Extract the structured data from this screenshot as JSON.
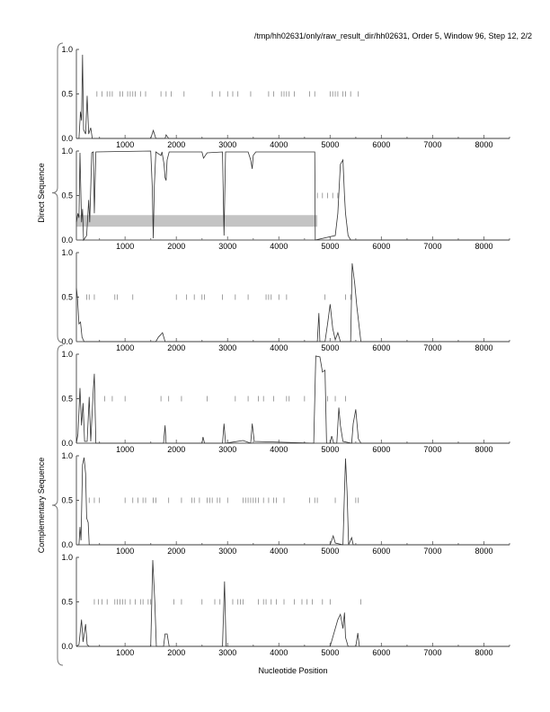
{
  "title": "/tmp/hh02631/only/raw_result_dir/hh02631, Order 5, Window 96, Step 12, 2/2",
  "chart_data": {
    "type": "line",
    "xlabel": "Nucleotide Position",
    "group_labels": [
      "Direct Sequence",
      "Complementary Sequence"
    ],
    "xlim": [
      50,
      8500
    ],
    "ylim": [
      0,
      1
    ],
    "x_ticks": [
      1000,
      2000,
      3000,
      4000,
      5000,
      6000,
      7000,
      8000
    ],
    "y_ticks": [
      "0.0",
      "0.5",
      "1.0"
    ],
    "line_color": "#333333",
    "shade_color": "#c4c4c4",
    "panels": [
      {
        "group": "Direct Sequence",
        "frame": 1,
        "curve": [
          [
            50,
            0
          ],
          [
            100,
            0
          ],
          [
            130,
            0.3
          ],
          [
            150,
            0.2
          ],
          [
            170,
            0.94
          ],
          [
            190,
            0.1
          ],
          [
            230,
            0.05
          ],
          [
            260,
            0.48
          ],
          [
            290,
            0.05
          ],
          [
            330,
            0.12
          ],
          [
            360,
            0
          ],
          [
            1500,
            0
          ],
          [
            1550,
            0.09
          ],
          [
            1600,
            0
          ],
          [
            1780,
            0
          ],
          [
            1800,
            0.04
          ],
          [
            1850,
            0
          ],
          [
            8500,
            0
          ]
        ],
        "starts": [
          450,
          550,
          650,
          700,
          750,
          900,
          950,
          1050,
          1100,
          1150,
          1200,
          1300,
          1400,
          1700,
          1800,
          1900,
          2150,
          2700,
          2850,
          3000,
          3100,
          3200,
          3450,
          3800,
          3900,
          4050,
          4100,
          4150,
          4200,
          4300,
          4600,
          4700,
          5000,
          5050,
          5100,
          5150,
          5250,
          5300,
          5400,
          5550
        ]
      },
      {
        "group": "Direct Sequence",
        "frame": 2,
        "curve": [
          [
            50,
            0.2
          ],
          [
            80,
            0.3
          ],
          [
            100,
            0.25
          ],
          [
            120,
            0.98
          ],
          [
            150,
            0.2
          ],
          [
            170,
            0.35
          ],
          [
            190,
            0
          ],
          [
            250,
            0.05
          ],
          [
            290,
            0.45
          ],
          [
            310,
            0.2
          ],
          [
            350,
            0.98
          ],
          [
            380,
            0.99
          ],
          [
            400,
            0.3
          ],
          [
            430,
            0.99
          ],
          [
            1500,
            1
          ],
          [
            1530,
            0.6
          ],
          [
            1550,
            0.02
          ],
          [
            1570,
            0.6
          ],
          [
            1600,
            0.99
          ],
          [
            1700,
            0.95
          ],
          [
            1720,
            0.99
          ],
          [
            1760,
            0.85
          ],
          [
            1780,
            0.7
          ],
          [
            1800,
            0.67
          ],
          [
            1820,
            0.9
          ],
          [
            1860,
            0.99
          ],
          [
            2500,
            0.99
          ],
          [
            2530,
            0.92
          ],
          [
            2600,
            0.98
          ],
          [
            2900,
            0.99
          ],
          [
            2930,
            0.05
          ],
          [
            2960,
            0.99
          ],
          [
            3400,
            0.99
          ],
          [
            3450,
            0.9
          ],
          [
            3480,
            0.8
          ],
          [
            3500,
            0.95
          ],
          [
            3550,
            0.99
          ],
          [
            4700,
            0.99
          ],
          [
            4710,
            0
          ],
          [
            5100,
            0.05
          ],
          [
            5150,
            0.3
          ],
          [
            5200,
            0.85
          ],
          [
            5250,
            0.9
          ],
          [
            5280,
            0.5
          ],
          [
            5300,
            0.3
          ],
          [
            5350,
            0.05
          ],
          [
            5400,
            0
          ],
          [
            8500,
            0
          ]
        ],
        "starts": [
          4750,
          4850,
          4950,
          5050,
          5150
        ],
        "shade": {
          "x": [
            50,
            4750
          ],
          "y": [
            0.15,
            0.28
          ]
        }
      },
      {
        "group": "Direct Sequence",
        "frame": 3,
        "curve": [
          [
            50,
            0.6
          ],
          [
            70,
            0.5
          ],
          [
            100,
            0.2
          ],
          [
            130,
            0.22
          ],
          [
            160,
            0.05
          ],
          [
            200,
            0
          ],
          [
            1600,
            0
          ],
          [
            1650,
            0.05
          ],
          [
            1700,
            0.08
          ],
          [
            1730,
            0.1
          ],
          [
            1780,
            0
          ],
          [
            4750,
            0
          ],
          [
            4780,
            0.32
          ],
          [
            4800,
            0
          ],
          [
            4900,
            0
          ],
          [
            4950,
            0.2
          ],
          [
            5000,
            0.42
          ],
          [
            5050,
            0.15
          ],
          [
            5100,
            0.02
          ],
          [
            5150,
            0.1
          ],
          [
            5200,
            0
          ],
          [
            5400,
            0
          ],
          [
            5430,
            0.88
          ],
          [
            5480,
            0.65
          ],
          [
            5520,
            0.4
          ],
          [
            5560,
            0.2
          ],
          [
            5600,
            0
          ],
          [
            8500,
            0
          ]
        ],
        "starts": [
          250,
          300,
          400,
          800,
          850,
          1150,
          2000,
          2200,
          2350,
          2500,
          2550,
          2900,
          3150,
          3400,
          3750,
          3800,
          3850,
          4000,
          4150,
          4900,
          5300,
          5400
        ]
      },
      {
        "group": "Complementary Sequence",
        "frame": 1,
        "curve": [
          [
            50,
            0
          ],
          [
            80,
            0.1
          ],
          [
            120,
            0.62
          ],
          [
            150,
            0.2
          ],
          [
            180,
            0.45
          ],
          [
            210,
            0.02
          ],
          [
            260,
            0.02
          ],
          [
            300,
            0.52
          ],
          [
            330,
            0.02
          ],
          [
            380,
            0.6
          ],
          [
            400,
            0.78
          ],
          [
            430,
            0
          ],
          [
            1750,
            0
          ],
          [
            1780,
            0.2
          ],
          [
            1800,
            0
          ],
          [
            2500,
            0
          ],
          [
            2520,
            0.07
          ],
          [
            2550,
            0
          ],
          [
            2900,
            0
          ],
          [
            2930,
            0.22
          ],
          [
            2960,
            0
          ],
          [
            3300,
            0.03
          ],
          [
            3450,
            0
          ],
          [
            3480,
            0.22
          ],
          [
            3520,
            0.02
          ],
          [
            4680,
            0
          ],
          [
            4720,
            0.98
          ],
          [
            4800,
            0.97
          ],
          [
            4850,
            0.8
          ],
          [
            4900,
            0.82
          ],
          [
            4930,
            0
          ],
          [
            5000,
            0
          ],
          [
            5030,
            0.08
          ],
          [
            5070,
            0
          ],
          [
            5130,
            0
          ],
          [
            5170,
            0.4
          ],
          [
            5200,
            0.2
          ],
          [
            5250,
            0.02
          ],
          [
            5420,
            0
          ],
          [
            5450,
            0.22
          ],
          [
            5500,
            0.38
          ],
          [
            5550,
            0.05
          ],
          [
            5600,
            0
          ],
          [
            8500,
            0
          ]
        ],
        "starts": [
          600,
          750,
          1000,
          1700,
          1850,
          2100,
          2600,
          3150,
          3400,
          3600,
          3700,
          3900,
          4150,
          4200,
          4500,
          4950,
          5100,
          5300
        ]
      },
      {
        "group": "Complementary Sequence",
        "frame": 2,
        "curve": [
          [
            50,
            0
          ],
          [
            100,
            0
          ],
          [
            120,
            0.2
          ],
          [
            140,
            0.05
          ],
          [
            170,
            0.9
          ],
          [
            200,
            0.98
          ],
          [
            230,
            0.8
          ],
          [
            250,
            0.3
          ],
          [
            280,
            0.25
          ],
          [
            300,
            0
          ],
          [
            5000,
            0
          ],
          [
            5060,
            0.1
          ],
          [
            5100,
            0.02
          ],
          [
            5250,
            0
          ],
          [
            5280,
            0.6
          ],
          [
            5300,
            0.97
          ],
          [
            5330,
            0.6
          ],
          [
            5360,
            0
          ],
          [
            5420,
            0.08
          ],
          [
            5450,
            0
          ],
          [
            8500,
            0
          ]
        ],
        "starts": [
          300,
          400,
          500,
          1000,
          1150,
          1250,
          1350,
          1400,
          1550,
          1600,
          1850,
          2100,
          2300,
          2350,
          2450,
          2600,
          2650,
          2700,
          2800,
          2850,
          3000,
          3300,
          3350,
          3400,
          3450,
          3500,
          3550,
          3600,
          3700,
          3800,
          3900,
          3950,
          4100,
          4600,
          4700,
          4750,
          5100,
          5500,
          5550
        ]
      },
      {
        "group": "Complementary Sequence",
        "frame": 3,
        "curve": [
          [
            50,
            0
          ],
          [
            100,
            0.02
          ],
          [
            150,
            0.3
          ],
          [
            180,
            0.05
          ],
          [
            230,
            0.25
          ],
          [
            260,
            0.02
          ],
          [
            300,
            0
          ],
          [
            1500,
            0
          ],
          [
            1540,
            0.97
          ],
          [
            1580,
            0.5
          ],
          [
            1610,
            0
          ],
          [
            1750,
            0
          ],
          [
            1780,
            0.14
          ],
          [
            1820,
            0.14
          ],
          [
            1860,
            0
          ],
          [
            2900,
            0
          ],
          [
            2940,
            0.73
          ],
          [
            2970,
            0
          ],
          [
            5000,
            0
          ],
          [
            5150,
            0.3
          ],
          [
            5200,
            0.36
          ],
          [
            5250,
            0.2
          ],
          [
            5280,
            0.38
          ],
          [
            5300,
            0.1
          ],
          [
            5350,
            0
          ],
          [
            5500,
            0
          ],
          [
            5540,
            0.15
          ],
          [
            5570,
            0
          ],
          [
            8500,
            0
          ]
        ],
        "starts": [
          400,
          480,
          550,
          650,
          800,
          850,
          900,
          950,
          1000,
          1100,
          1200,
          1300,
          1350,
          1450,
          1500,
          1950,
          2100,
          2500,
          2750,
          2850,
          3100,
          3200,
          3250,
          3300,
          3600,
          3700,
          3750,
          3850,
          3950,
          4100,
          4300,
          4450,
          4550,
          4650,
          4850,
          5000,
          5600
        ]
      }
    ]
  }
}
